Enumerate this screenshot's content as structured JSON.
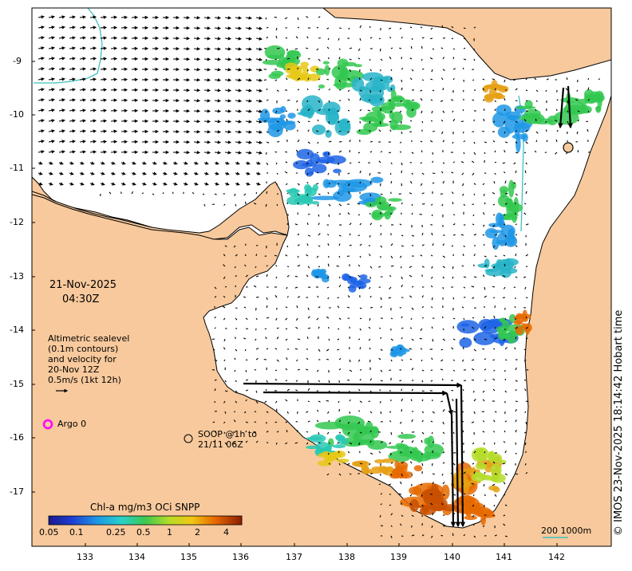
{
  "map_title": {
    "date": "21-Nov-2025",
    "time": "04:30Z"
  },
  "altimetry_legend": {
    "line1": "Altimetric sealevel",
    "line2": "(0.1m contours)",
    "line3": "and velocity for",
    "line4": "20-Nov 12Z",
    "line5": "0.5m/s (1kt 12h)"
  },
  "argo_legend": {
    "label": "Argo 0",
    "color": "#ff00ff"
  },
  "soop_legend": {
    "line1": "SOOP @1h to",
    "line2": "21/11 06Z"
  },
  "scale_bar": {
    "label": "200  1000m",
    "color": "#40c0c0"
  },
  "credit": "© IMOS 23-Nov-2025 18:14:42 Hobart time",
  "colorbar": {
    "title": "Chl-a mg/m3 OCi SNPP",
    "ticks": [
      "0.05",
      "0.1",
      "0.25",
      "0.5",
      "1",
      "2",
      "4"
    ]
  },
  "axes": {
    "x_ticks": [
      "133",
      "134",
      "135",
      "136",
      "137",
      "138",
      "139",
      "140",
      "141",
      "142"
    ],
    "y_ticks": [
      "-9",
      "-10",
      "-11",
      "-12",
      "-13",
      "-14",
      "-15",
      "-16",
      "-17"
    ]
  },
  "colors": {
    "land": "#f7c99c",
    "coast": "#000000",
    "contour_200m": "#40c0c0",
    "chl_low": "#1e64e6",
    "chl_mid": "#32c850",
    "chl_high": "#e66a00"
  }
}
